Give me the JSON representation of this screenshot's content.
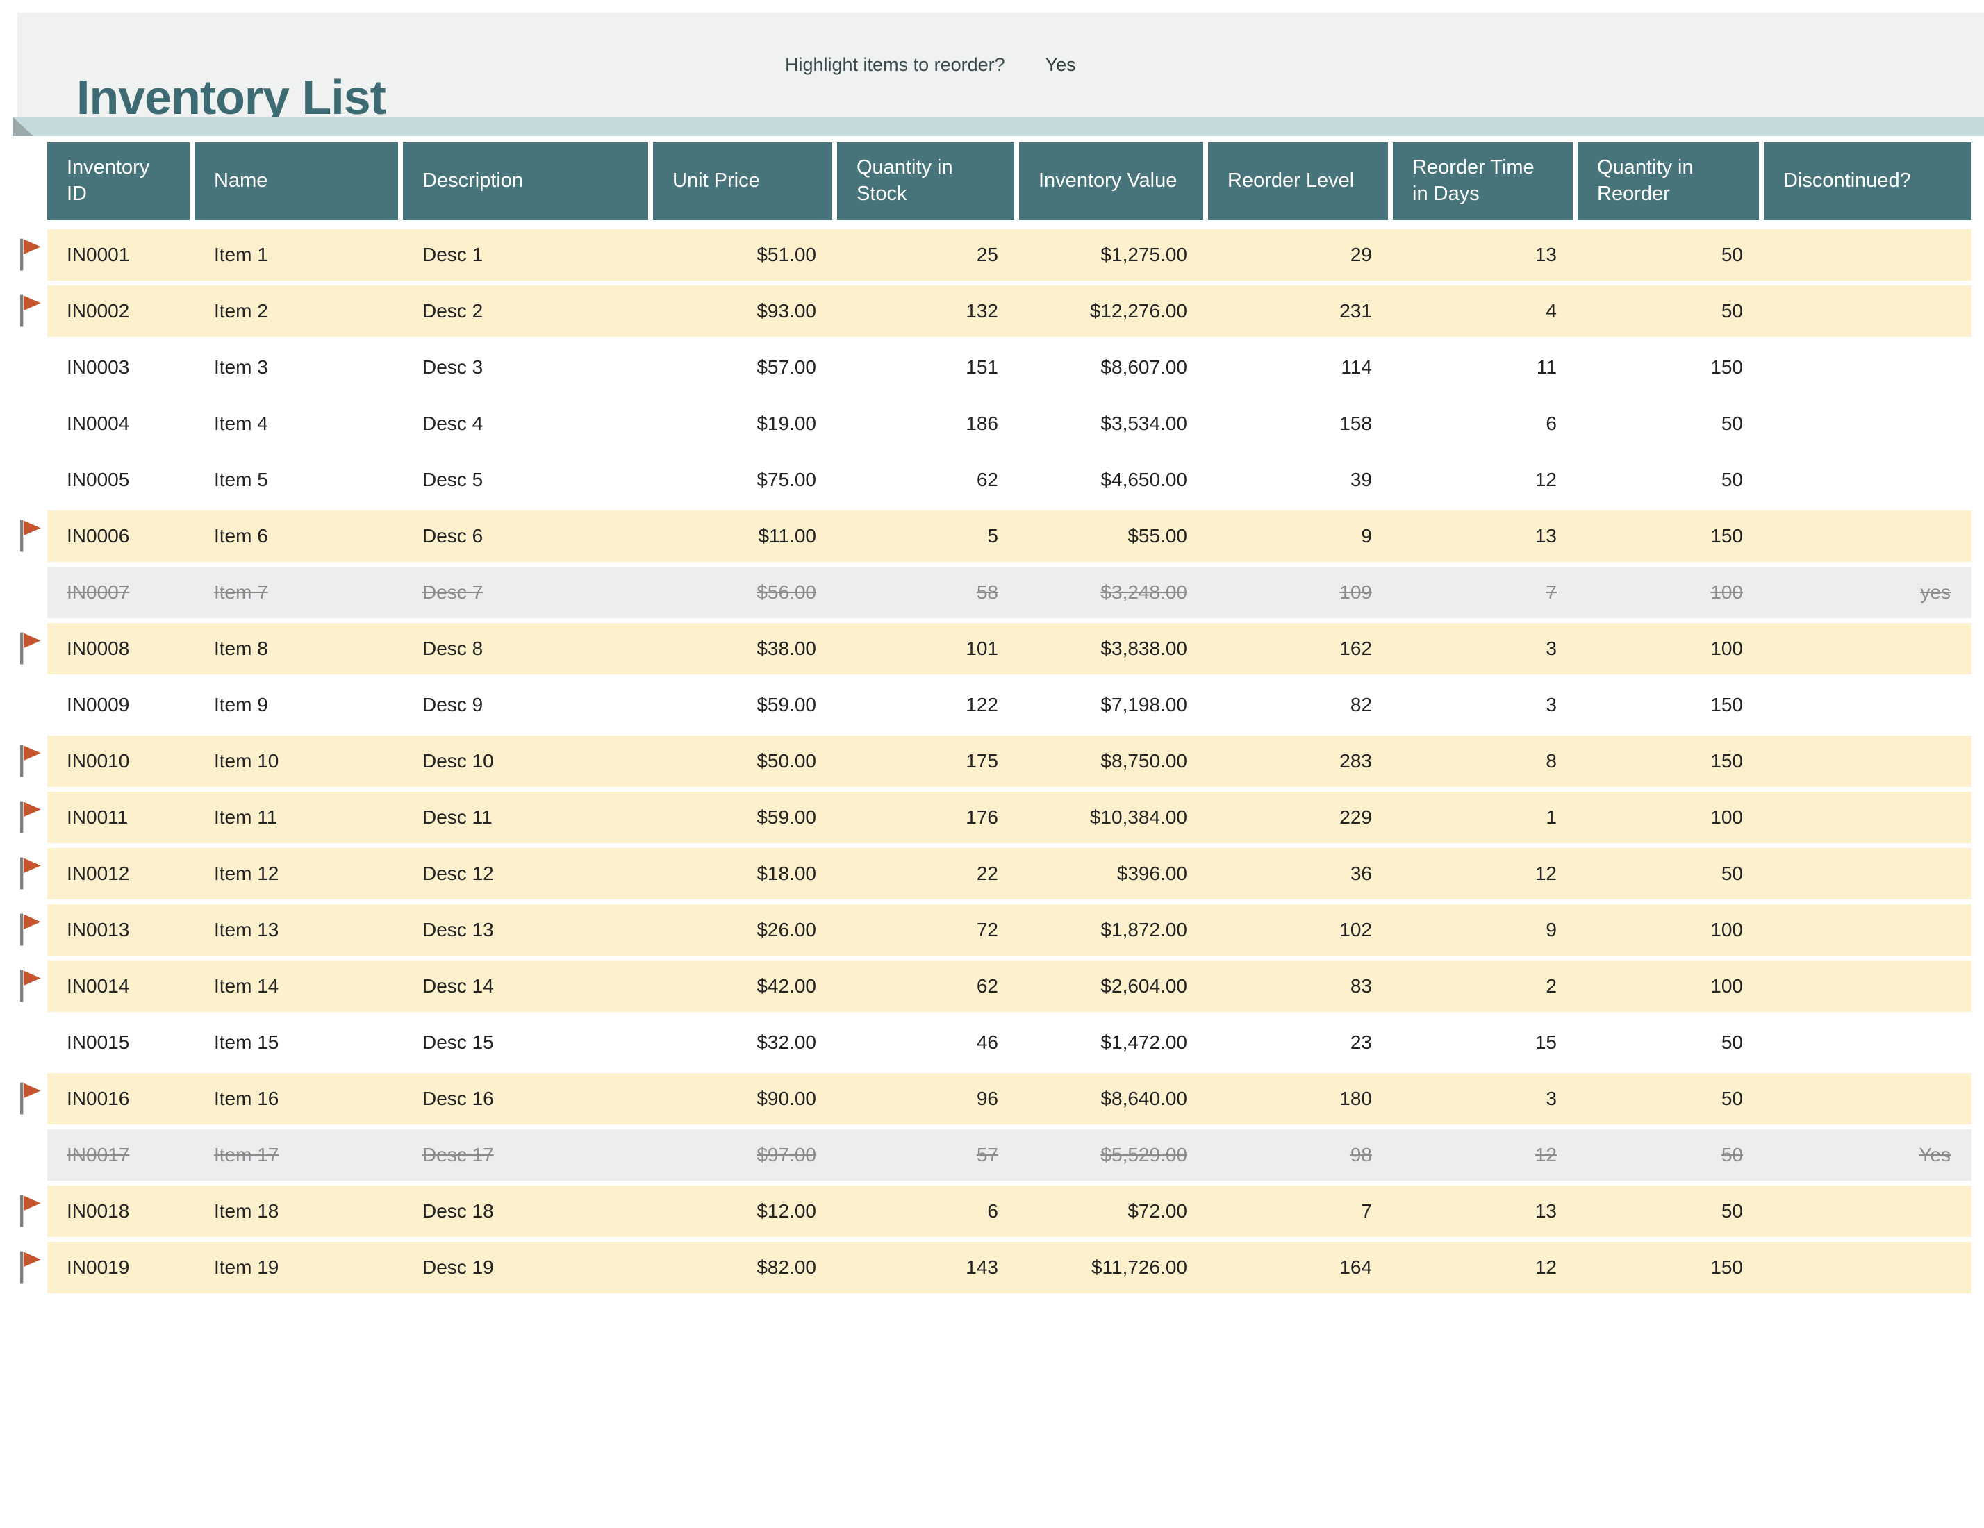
{
  "title": "Inventory List",
  "controls": {
    "highlight_label": "Highlight items to reorder?",
    "highlight_value": "Yes"
  },
  "colors": {
    "header-teal": "#47737A",
    "title-teal": "#3C6B73",
    "ribbon-teal": "#C5DADC",
    "banner-bg": "#F0F1F1",
    "highlight-yellow": "#FDF0CC",
    "discontinued-gray": "#ECEDEE",
    "flag-orange": "#C4552F"
  },
  "columns": [
    {
      "key": "id",
      "label": "Inventory ID"
    },
    {
      "key": "name",
      "label": "Name"
    },
    {
      "key": "description",
      "label": "Description"
    },
    {
      "key": "unit_price",
      "label": "Unit Price"
    },
    {
      "key": "quantity_in_stock",
      "label": "Quantity in Stock"
    },
    {
      "key": "inventory_value",
      "label": "Inventory Value"
    },
    {
      "key": "reorder_level",
      "label": "Reorder Level"
    },
    {
      "key": "reorder_time_days",
      "label": "Reorder Time in Days"
    },
    {
      "key": "quantity_in_reorder",
      "label": "Quantity in Reorder"
    },
    {
      "key": "discontinued",
      "label": "Discontinued?"
    }
  ],
  "rows": [
    {
      "id": "IN0001",
      "name": "Item 1",
      "description": "Desc 1",
      "unit_price": "$51.00",
      "quantity_in_stock": "25",
      "inventory_value": "$1,275.00",
      "reorder_level": "29",
      "reorder_time_days": "13",
      "quantity_in_reorder": "50",
      "discontinued": "",
      "flagged": true,
      "state": "reorder"
    },
    {
      "id": "IN0002",
      "name": "Item 2",
      "description": "Desc 2",
      "unit_price": "$93.00",
      "quantity_in_stock": "132",
      "inventory_value": "$12,276.00",
      "reorder_level": "231",
      "reorder_time_days": "4",
      "quantity_in_reorder": "50",
      "discontinued": "",
      "flagged": true,
      "state": "reorder"
    },
    {
      "id": "IN0003",
      "name": "Item 3",
      "description": "Desc 3",
      "unit_price": "$57.00",
      "quantity_in_stock": "151",
      "inventory_value": "$8,607.00",
      "reorder_level": "114",
      "reorder_time_days": "11",
      "quantity_in_reorder": "150",
      "discontinued": "",
      "flagged": false,
      "state": "normal"
    },
    {
      "id": "IN0004",
      "name": "Item 4",
      "description": "Desc 4",
      "unit_price": "$19.00",
      "quantity_in_stock": "186",
      "inventory_value": "$3,534.00",
      "reorder_level": "158",
      "reorder_time_days": "6",
      "quantity_in_reorder": "50",
      "discontinued": "",
      "flagged": false,
      "state": "normal"
    },
    {
      "id": "IN0005",
      "name": "Item 5",
      "description": "Desc 5",
      "unit_price": "$75.00",
      "quantity_in_stock": "62",
      "inventory_value": "$4,650.00",
      "reorder_level": "39",
      "reorder_time_days": "12",
      "quantity_in_reorder": "50",
      "discontinued": "",
      "flagged": false,
      "state": "normal"
    },
    {
      "id": "IN0006",
      "name": "Item 6",
      "description": "Desc 6",
      "unit_price": "$11.00",
      "quantity_in_stock": "5",
      "inventory_value": "$55.00",
      "reorder_level": "9",
      "reorder_time_days": "13",
      "quantity_in_reorder": "150",
      "discontinued": "",
      "flagged": true,
      "state": "reorder"
    },
    {
      "id": "IN0007",
      "name": "Item 7",
      "description": "Desc 7",
      "unit_price": "$56.00",
      "quantity_in_stock": "58",
      "inventory_value": "$3,248.00",
      "reorder_level": "109",
      "reorder_time_days": "7",
      "quantity_in_reorder": "100",
      "discontinued": "yes",
      "flagged": false,
      "state": "discontinued"
    },
    {
      "id": "IN0008",
      "name": "Item 8",
      "description": "Desc 8",
      "unit_price": "$38.00",
      "quantity_in_stock": "101",
      "inventory_value": "$3,838.00",
      "reorder_level": "162",
      "reorder_time_days": "3",
      "quantity_in_reorder": "100",
      "discontinued": "",
      "flagged": true,
      "state": "reorder"
    },
    {
      "id": "IN0009",
      "name": "Item 9",
      "description": "Desc 9",
      "unit_price": "$59.00",
      "quantity_in_stock": "122",
      "inventory_value": "$7,198.00",
      "reorder_level": "82",
      "reorder_time_days": "3",
      "quantity_in_reorder": "150",
      "discontinued": "",
      "flagged": false,
      "state": "normal"
    },
    {
      "id": "IN0010",
      "name": "Item 10",
      "description": "Desc 10",
      "unit_price": "$50.00",
      "quantity_in_stock": "175",
      "inventory_value": "$8,750.00",
      "reorder_level": "283",
      "reorder_time_days": "8",
      "quantity_in_reorder": "150",
      "discontinued": "",
      "flagged": true,
      "state": "reorder"
    },
    {
      "id": "IN0011",
      "name": "Item 11",
      "description": "Desc 11",
      "unit_price": "$59.00",
      "quantity_in_stock": "176",
      "inventory_value": "$10,384.00",
      "reorder_level": "229",
      "reorder_time_days": "1",
      "quantity_in_reorder": "100",
      "discontinued": "",
      "flagged": true,
      "state": "reorder"
    },
    {
      "id": "IN0012",
      "name": "Item 12",
      "description": "Desc 12",
      "unit_price": "$18.00",
      "quantity_in_stock": "22",
      "inventory_value": "$396.00",
      "reorder_level": "36",
      "reorder_time_days": "12",
      "quantity_in_reorder": "50",
      "discontinued": "",
      "flagged": true,
      "state": "reorder"
    },
    {
      "id": "IN0013",
      "name": "Item 13",
      "description": "Desc 13",
      "unit_price": "$26.00",
      "quantity_in_stock": "72",
      "inventory_value": "$1,872.00",
      "reorder_level": "102",
      "reorder_time_days": "9",
      "quantity_in_reorder": "100",
      "discontinued": "",
      "flagged": true,
      "state": "reorder"
    },
    {
      "id": "IN0014",
      "name": "Item 14",
      "description": "Desc 14",
      "unit_price": "$42.00",
      "quantity_in_stock": "62",
      "inventory_value": "$2,604.00",
      "reorder_level": "83",
      "reorder_time_days": "2",
      "quantity_in_reorder": "100",
      "discontinued": "",
      "flagged": true,
      "state": "reorder"
    },
    {
      "id": "IN0015",
      "name": "Item 15",
      "description": "Desc 15",
      "unit_price": "$32.00",
      "quantity_in_stock": "46",
      "inventory_value": "$1,472.00",
      "reorder_level": "23",
      "reorder_time_days": "15",
      "quantity_in_reorder": "50",
      "discontinued": "",
      "flagged": false,
      "state": "normal"
    },
    {
      "id": "IN0016",
      "name": "Item 16",
      "description": "Desc 16",
      "unit_price": "$90.00",
      "quantity_in_stock": "96",
      "inventory_value": "$8,640.00",
      "reorder_level": "180",
      "reorder_time_days": "3",
      "quantity_in_reorder": "50",
      "discontinued": "",
      "flagged": true,
      "state": "reorder"
    },
    {
      "id": "IN0017",
      "name": "Item 17",
      "description": "Desc 17",
      "unit_price": "$97.00",
      "quantity_in_stock": "57",
      "inventory_value": "$5,529.00",
      "reorder_level": "98",
      "reorder_time_days": "12",
      "quantity_in_reorder": "50",
      "discontinued": "Yes",
      "flagged": false,
      "state": "discontinued"
    },
    {
      "id": "IN0018",
      "name": "Item 18",
      "description": "Desc 18",
      "unit_price": "$12.00",
      "quantity_in_stock": "6",
      "inventory_value": "$72.00",
      "reorder_level": "7",
      "reorder_time_days": "13",
      "quantity_in_reorder": "50",
      "discontinued": "",
      "flagged": true,
      "state": "reorder"
    },
    {
      "id": "IN0019",
      "name": "Item 19",
      "description": "Desc 19",
      "unit_price": "$82.00",
      "quantity_in_stock": "143",
      "inventory_value": "$11,726.00",
      "reorder_level": "164",
      "reorder_time_days": "12",
      "quantity_in_reorder": "150",
      "discontinued": "",
      "flagged": true,
      "state": "reorder"
    }
  ]
}
